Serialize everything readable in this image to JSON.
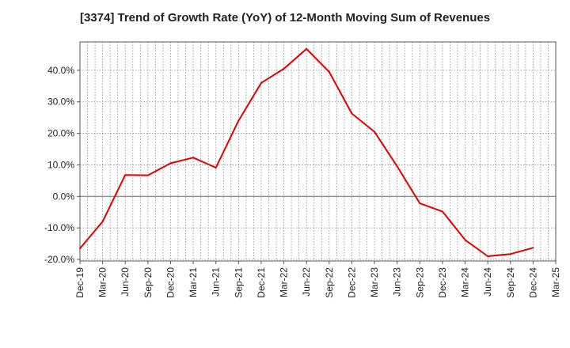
{
  "chart_data": {
    "type": "line",
    "title": "[3374]  Trend of Growth Rate (YoY) of 12-Month Moving Sum of Revenues",
    "xlabel": "",
    "ylabel": "",
    "x_ticks": [
      "Dec-19",
      "Mar-20",
      "Jun-20",
      "Sep-20",
      "Dec-20",
      "Mar-21",
      "Jun-21",
      "Sep-21",
      "Dec-21",
      "Mar-22",
      "Jun-22",
      "Sep-22",
      "Dec-22",
      "Mar-23",
      "Jun-23",
      "Sep-23",
      "Dec-23",
      "Mar-24",
      "Jun-24",
      "Sep-24",
      "Dec-24",
      "Mar-25"
    ],
    "y_ticks": [
      "-20.0%",
      "-10.0%",
      "0.0%",
      "10.0%",
      "20.0%",
      "30.0%",
      "40.0%"
    ],
    "ylim": [
      -20.5,
      49
    ],
    "grid": true,
    "series": [
      {
        "color": "#e00000",
        "x": [
          "Dec-19",
          "Mar-20",
          "Jun-20",
          "Sep-20",
          "Dec-20",
          "Mar-21",
          "Jun-21",
          "Sep-21",
          "Dec-21",
          "Mar-22",
          "Jun-22",
          "Sep-22",
          "Dec-22",
          "Mar-23",
          "Jun-23",
          "Sep-23",
          "Dec-23",
          "Mar-24",
          "Jun-24",
          "Sep-24",
          "Dec-24"
        ],
        "values": [
          -16.5,
          -8.0,
          6.8,
          6.7,
          10.5,
          12.3,
          9.1,
          24.0,
          36.0,
          40.5,
          46.8,
          39.5,
          26.3,
          20.5,
          9.5,
          -2.2,
          -4.8,
          -13.8,
          -19.0,
          -18.3,
          -16.3
        ]
      }
    ]
  }
}
